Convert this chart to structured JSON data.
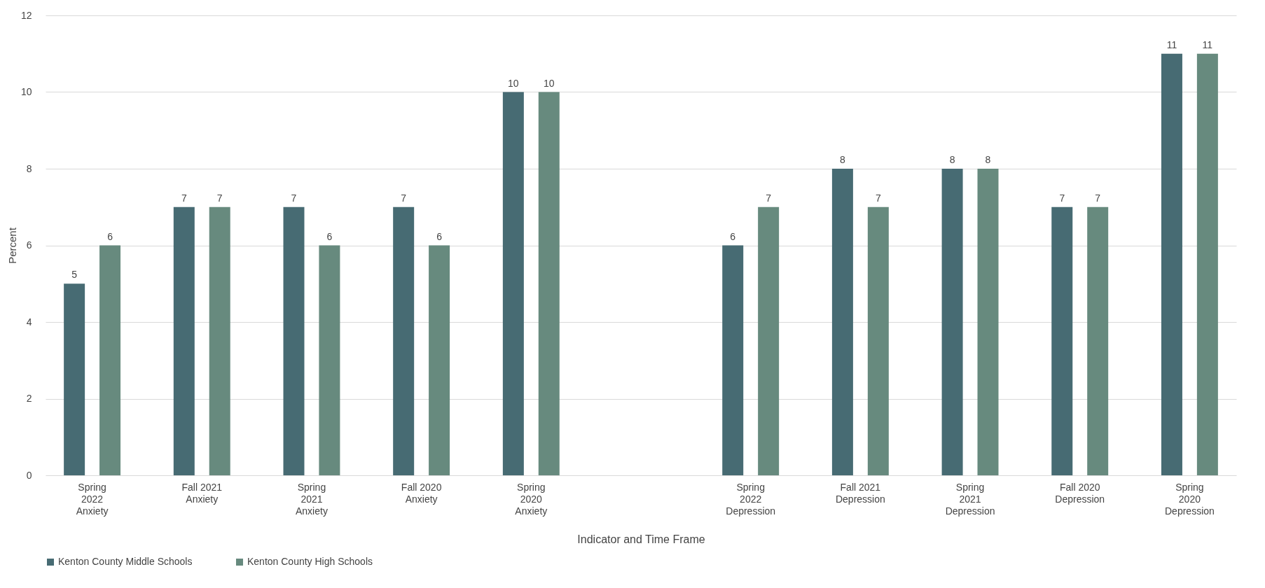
{
  "chart_data": {
    "type": "bar",
    "xlabel": "Indicator and Time Frame",
    "ylabel": "Percent",
    "categories": [
      "Spring 2022 Anxiety",
      "Fall 2021 Anxiety",
      "Spring 2021 Anxiety",
      "Fall 2020 Anxiety",
      "Spring 2020 Anxiety",
      null,
      "Spring 2022 Depression",
      "Fall 2021 Depression",
      "Spring 2021 Depression",
      "Fall 2020 Depression",
      "Spring 2020 Depression"
    ],
    "series": [
      {
        "name": "Kenton County Middle Schools",
        "color": "#476b73",
        "values": [
          5,
          7,
          7,
          7,
          10,
          null,
          6,
          8,
          8,
          7,
          11
        ]
      },
      {
        "name": "Kenton County High Schools",
        "color": "#678a7e",
        "values": [
          6,
          7,
          6,
          6,
          10,
          null,
          7,
          7,
          8,
          7,
          11
        ]
      }
    ],
    "ylim": [
      0,
      12
    ],
    "yticks": [
      0,
      2,
      4,
      6,
      8,
      10,
      12
    ],
    "grid": "y",
    "legend": "bottom",
    "data_labels": true
  }
}
